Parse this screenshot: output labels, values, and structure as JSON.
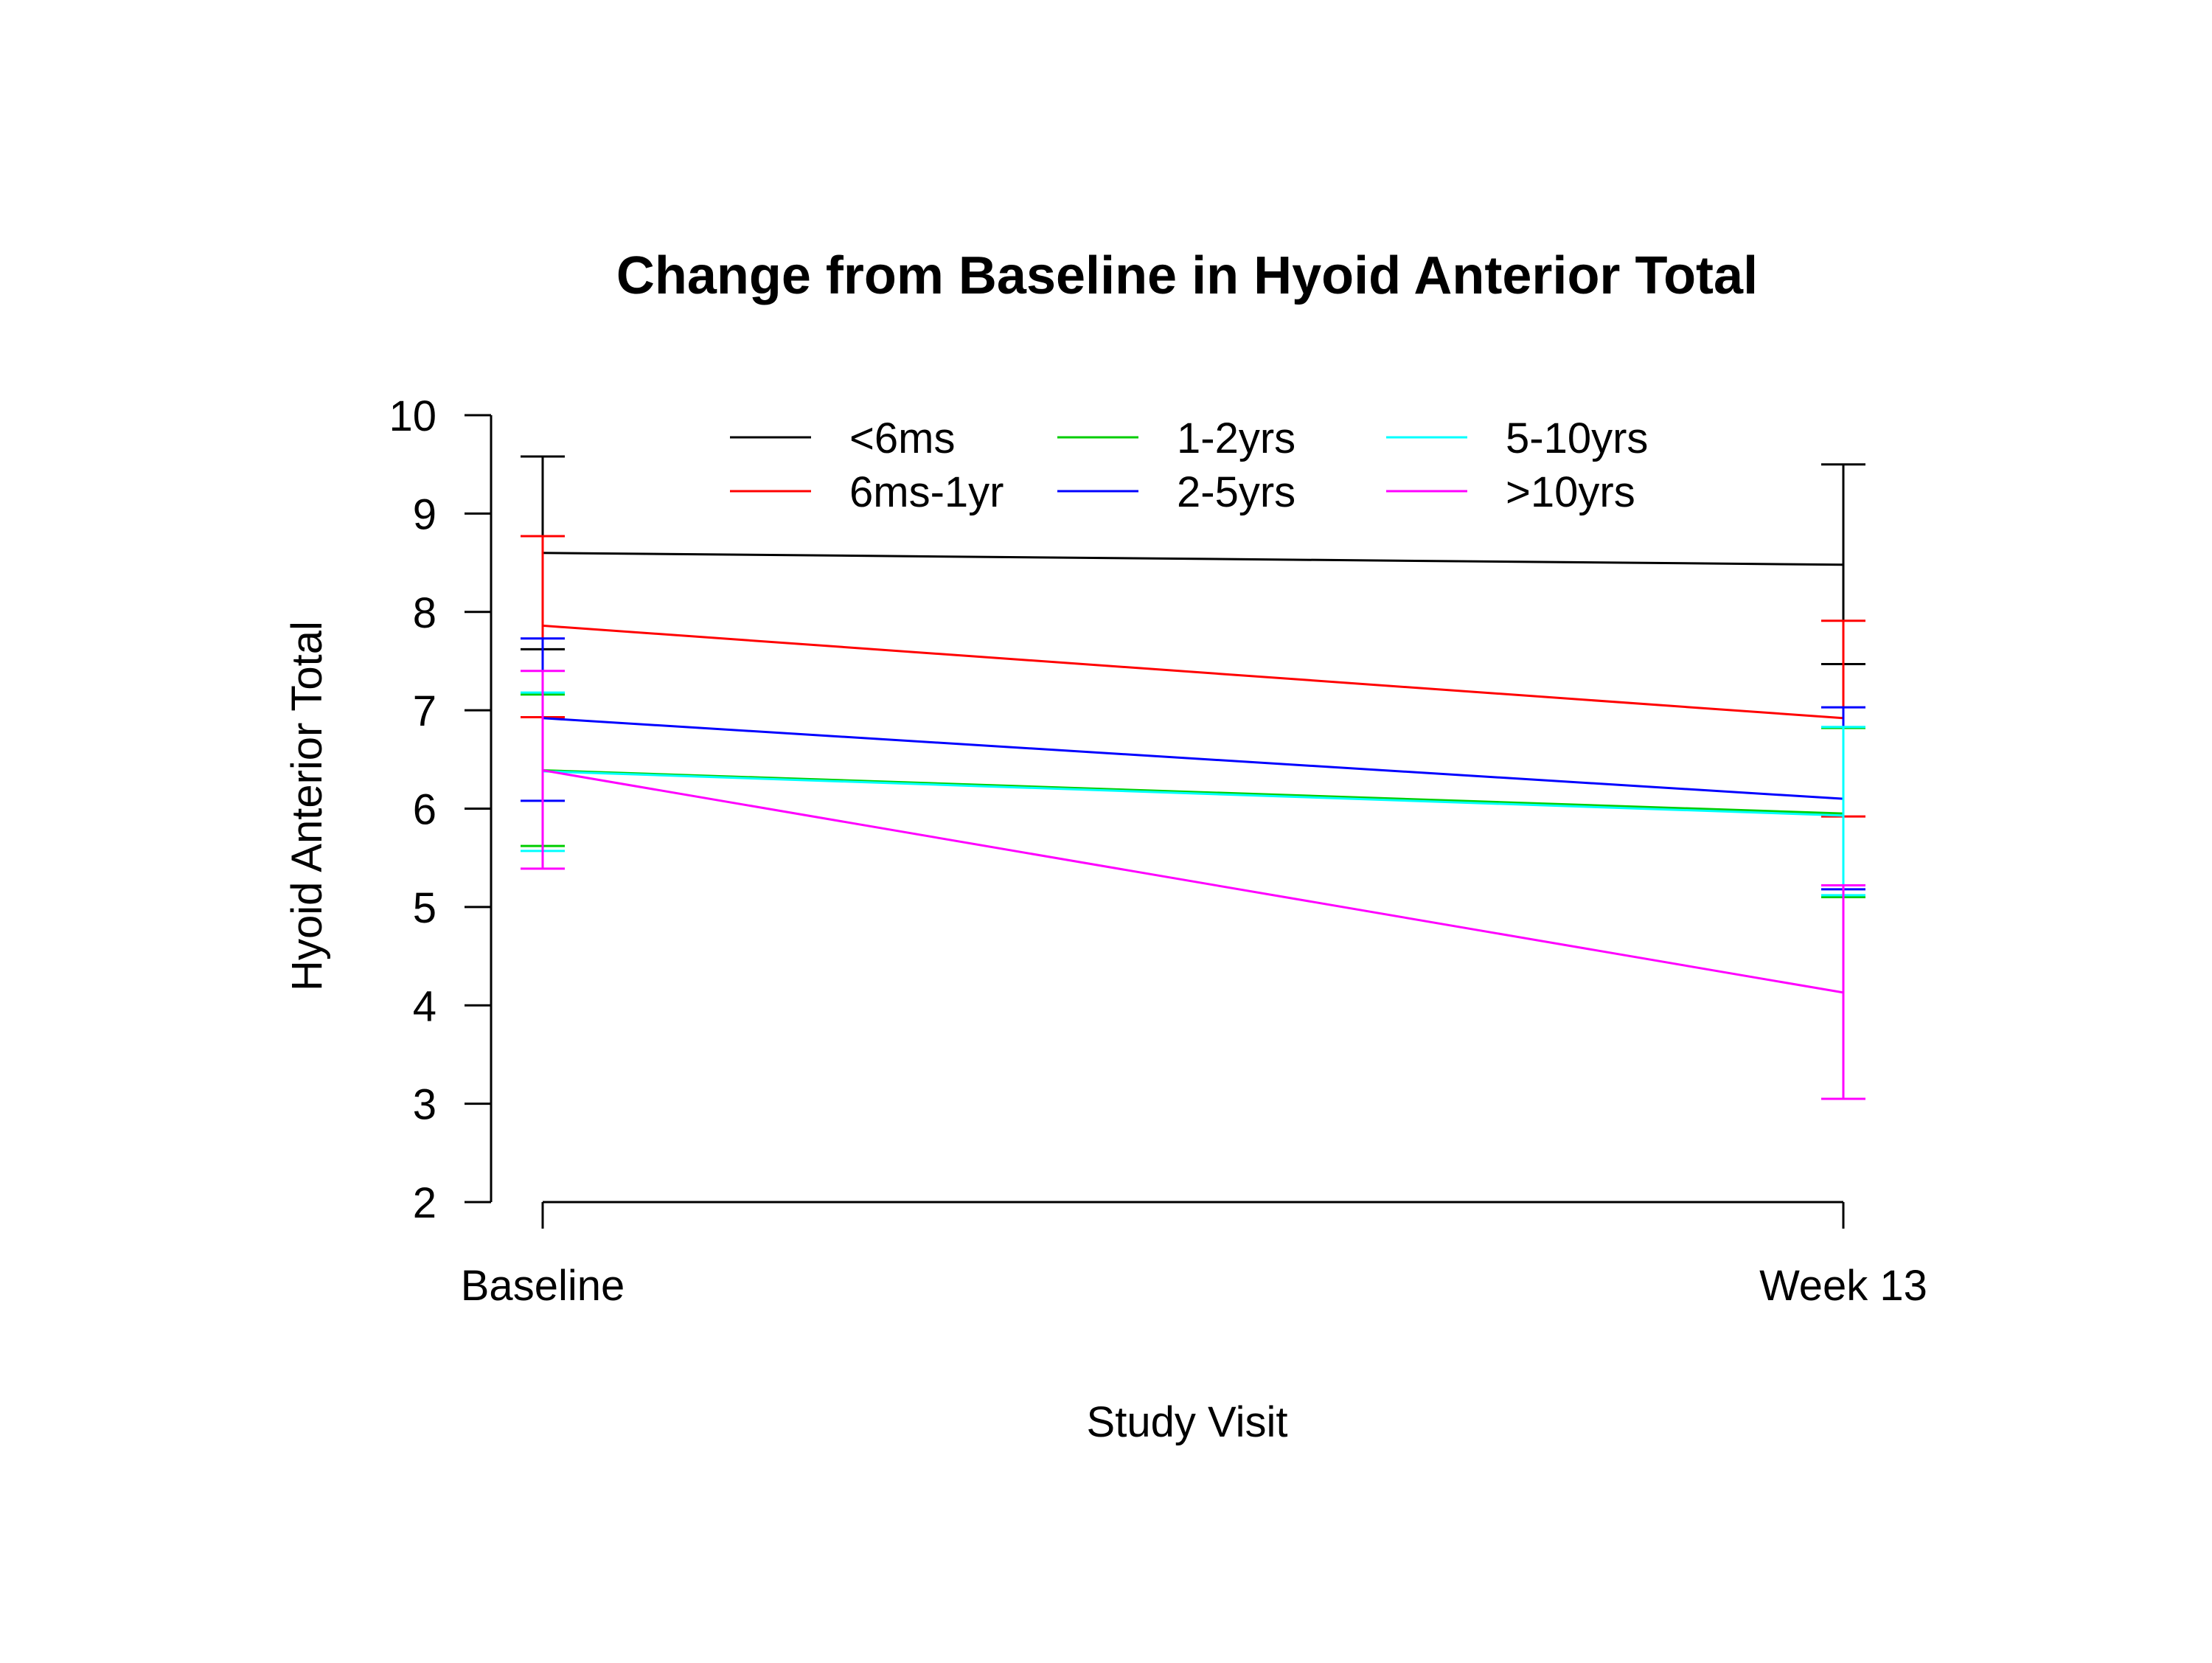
{
  "chart_data": {
    "type": "line",
    "title": "Change from Baseline in Hyoid Anterior Total",
    "xlabel": "Study Visit",
    "ylabel": "Hyoid Anterior Total",
    "categories": [
      "Baseline",
      "Week 13"
    ],
    "ylim": [
      2,
      10
    ],
    "yticks": [
      "2",
      "3",
      "4",
      "5",
      "6",
      "7",
      "8",
      "9",
      "10"
    ],
    "grid": false,
    "legend_position": "top",
    "series": [
      {
        "name": "<6ms",
        "color": "#000000",
        "values": [
          8.6,
          8.48
        ],
        "lower": [
          7.62,
          7.47
        ],
        "upper": [
          9.58,
          9.5
        ]
      },
      {
        "name": "6ms-1yr",
        "color": "#ff0000",
        "values": [
          7.86,
          6.92
        ],
        "lower": [
          6.93,
          5.92
        ],
        "upper": [
          8.77,
          7.91
        ]
      },
      {
        "name": "1-2yrs",
        "color": "#00cd00",
        "values": [
          6.39,
          5.95
        ],
        "lower": [
          5.62,
          5.1
        ],
        "upper": [
          7.16,
          6.82
        ]
      },
      {
        "name": "2-5yrs",
        "color": "#0000ff",
        "values": [
          6.92,
          6.1
        ],
        "lower": [
          6.08,
          5.18
        ],
        "upper": [
          7.73,
          7.03
        ]
      },
      {
        "name": "5-10yrs",
        "color": "#00ffff",
        "values": [
          6.38,
          5.93
        ],
        "lower": [
          5.57,
          5.12
        ],
        "upper": [
          7.18,
          6.83
        ]
      },
      {
        "name": ">10yrs",
        "color": "#ff00ff",
        "values": [
          6.39,
          4.13
        ],
        "lower": [
          5.39,
          3.05
        ],
        "upper": [
          7.4,
          5.22
        ]
      }
    ]
  }
}
